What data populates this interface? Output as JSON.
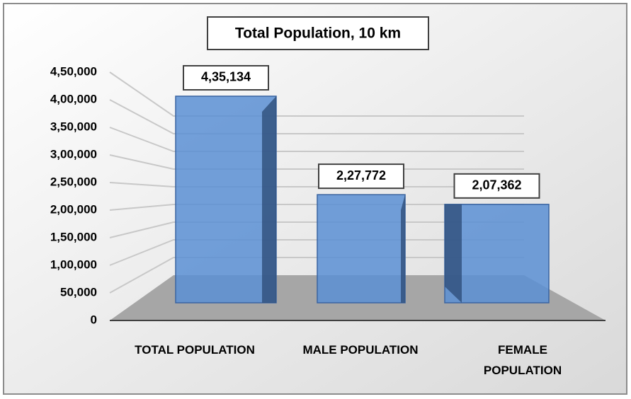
{
  "chart_data": {
    "type": "bar3d",
    "title": "Total Population, 10 km",
    "categories": [
      "TOTAL POPULATION",
      "MALE POPULATION",
      "FEMALE POPULATION"
    ],
    "values": [
      435134,
      227772,
      207362
    ],
    "value_labels": [
      "4,35,134",
      "2,27,772",
      "2,07,362"
    ],
    "color": "#5b8fd4",
    "ylim": [
      0,
      450000
    ],
    "yticks": [
      0,
      {
        "value": 50000,
        "label": "50,000"
      },
      {
        "value": 100000,
        "label": "1,00,000"
      },
      {
        "value": 150000,
        "label": "1,50,000"
      },
      {
        "value": 200000,
        "label": "2,00,000"
      },
      {
        "value": 250000,
        "label": "2,50,000"
      },
      {
        "value": 300000,
        "label": "3,00,000"
      },
      {
        "value": 350000,
        "label": "3,50,000"
      },
      {
        "value": 400000,
        "label": "4,00,000"
      },
      {
        "value": 450000,
        "label": "4,50,000"
      }
    ],
    "grid": true
  }
}
